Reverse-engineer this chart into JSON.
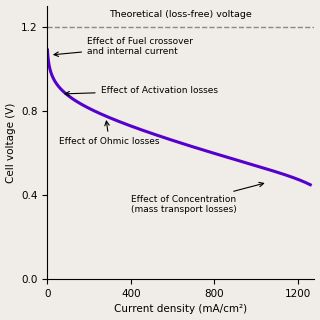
{
  "xlabel": "Current density (mA/cm²)",
  "ylabel": "Cell voltage (V)",
  "theoretical_voltage": 1.2,
  "theoretical_label": "Theoretical (loss-free) voltage",
  "xlim": [
    0,
    1280
  ],
  "ylim": [
    0,
    1.3
  ],
  "xticks": [
    0,
    400,
    800,
    1200
  ],
  "yticks": [
    0,
    0.4,
    0.8,
    1.2
  ],
  "curve_color": "#5500cc",
  "dashed_color": "#888888",
  "bg_color": "#f0ede8",
  "annotation_fontsize": 6.5,
  "curve_params": {
    "E0": 1.2,
    "i_leak": 3.0,
    "i0": 0.4,
    "b": 0.055,
    "R": 0.00023,
    "m": 5e-09,
    "n": 0.012,
    "imax": 1260
  }
}
